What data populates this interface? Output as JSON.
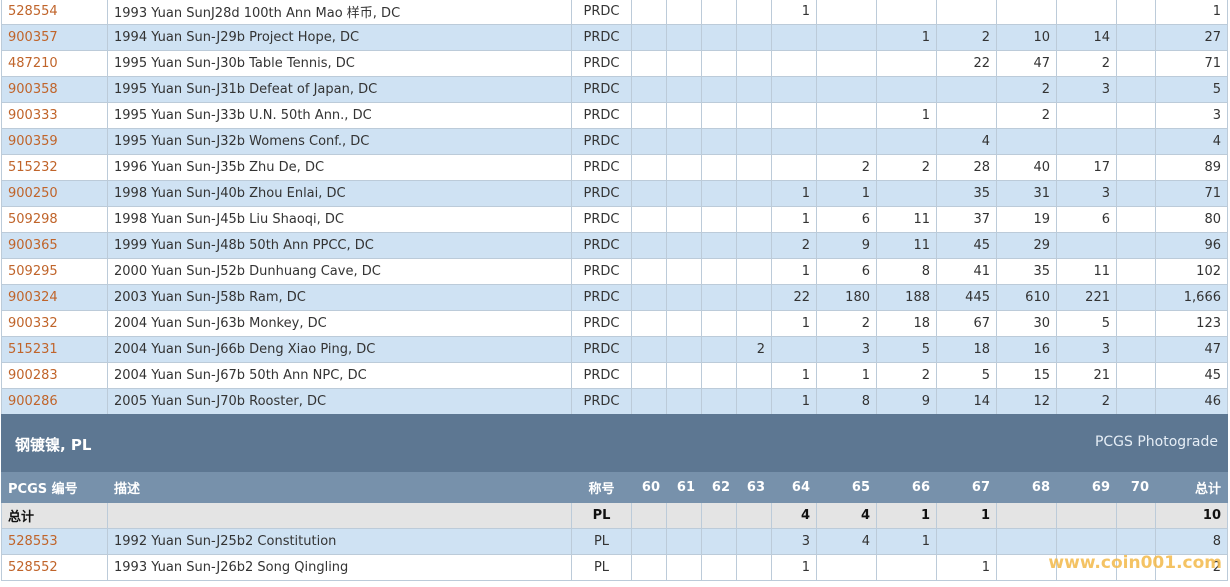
{
  "top_rows": [
    {
      "id": "528554",
      "desc": "1993 Yuan SunJ28d 100th Ann Mao 样币, DC",
      "grade": "PRDC",
      "counts": [
        null,
        null,
        null,
        null,
        1,
        null,
        null,
        null,
        null,
        null,
        null
      ],
      "total": "1"
    },
    {
      "id": "900357",
      "desc": "1994 Yuan Sun-J29b Project Hope, DC",
      "grade": "PRDC",
      "counts": [
        null,
        null,
        null,
        null,
        null,
        null,
        1,
        2,
        10,
        14,
        null
      ],
      "total": "27"
    },
    {
      "id": "487210",
      "desc": "1995 Yuan Sun-J30b Table Tennis, DC",
      "grade": "PRDC",
      "counts": [
        null,
        null,
        null,
        null,
        null,
        null,
        null,
        22,
        47,
        2,
        null
      ],
      "total": "71"
    },
    {
      "id": "900358",
      "desc": "1995 Yuan Sun-J31b Defeat of Japan, DC",
      "grade": "PRDC",
      "counts": [
        null,
        null,
        null,
        null,
        null,
        null,
        null,
        null,
        2,
        3,
        null
      ],
      "total": "5"
    },
    {
      "id": "900333",
      "desc": "1995 Yuan Sun-J33b U.N. 50th Ann., DC",
      "grade": "PRDC",
      "counts": [
        null,
        null,
        null,
        null,
        null,
        null,
        1,
        null,
        2,
        null,
        null
      ],
      "total": "3"
    },
    {
      "id": "900359",
      "desc": "1995 Yuan Sun-J32b Womens Conf., DC",
      "grade": "PRDC",
      "counts": [
        null,
        null,
        null,
        null,
        null,
        null,
        null,
        4,
        null,
        null,
        null
      ],
      "total": "4"
    },
    {
      "id": "515232",
      "desc": "1996 Yuan Sun-J35b Zhu De, DC",
      "grade": "PRDC",
      "counts": [
        null,
        null,
        null,
        null,
        null,
        2,
        2,
        28,
        40,
        17,
        null
      ],
      "total": "89"
    },
    {
      "id": "900250",
      "desc": "1998 Yuan Sun-J40b Zhou Enlai, DC",
      "grade": "PRDC",
      "counts": [
        null,
        null,
        null,
        null,
        1,
        1,
        null,
        35,
        31,
        3,
        null
      ],
      "total": "71"
    },
    {
      "id": "509298",
      "desc": "1998 Yuan Sun-J45b Liu Shaoqi, DC",
      "grade": "PRDC",
      "counts": [
        null,
        null,
        null,
        null,
        1,
        6,
        11,
        37,
        19,
        6,
        null
      ],
      "total": "80"
    },
    {
      "id": "900365",
      "desc": "1999 Yuan Sun-J48b 50th Ann PPCC, DC",
      "grade": "PRDC",
      "counts": [
        null,
        null,
        null,
        null,
        2,
        9,
        11,
        45,
        29,
        null,
        null
      ],
      "total": "96"
    },
    {
      "id": "509295",
      "desc": "2000 Yuan Sun-J52b Dunhuang Cave, DC",
      "grade": "PRDC",
      "counts": [
        null,
        null,
        null,
        null,
        1,
        6,
        8,
        41,
        35,
        11,
        null
      ],
      "total": "102"
    },
    {
      "id": "900324",
      "desc": "2003 Yuan Sun-J58b Ram, DC",
      "grade": "PRDC",
      "counts": [
        null,
        null,
        null,
        null,
        22,
        180,
        188,
        445,
        610,
        221,
        null
      ],
      "total": "1,666"
    },
    {
      "id": "900332",
      "desc": "2004 Yuan Sun-J63b Monkey, DC",
      "grade": "PRDC",
      "counts": [
        null,
        null,
        null,
        null,
        1,
        2,
        18,
        67,
        30,
        5,
        null
      ],
      "total": "123"
    },
    {
      "id": "515231",
      "desc": "2004 Yuan Sun-J66b Deng Xiao Ping, DC",
      "grade": "PRDC",
      "counts": [
        null,
        null,
        null,
        2,
        null,
        3,
        5,
        18,
        16,
        3,
        null
      ],
      "total": "47"
    },
    {
      "id": "900283",
      "desc": "2004 Yuan Sun-J67b 50th Ann NPC, DC",
      "grade": "PRDC",
      "counts": [
        null,
        null,
        null,
        null,
        1,
        1,
        2,
        5,
        15,
        21,
        null
      ],
      "total": "45"
    },
    {
      "id": "900286",
      "desc": "2005 Yuan Sun-J70b Rooster, DC",
      "grade": "PRDC",
      "counts": [
        null,
        null,
        null,
        null,
        1,
        8,
        9,
        14,
        12,
        2,
        null
      ],
      "total": "46"
    }
  ],
  "section": {
    "title": "钢镀镍, PL",
    "link": "PCGS Photograde"
  },
  "columns": [
    "PCGS 编号",
    "描述",
    "称号",
    "60",
    "61",
    "62",
    "63",
    "64",
    "65",
    "66",
    "67",
    "68",
    "69",
    "70",
    "总计"
  ],
  "totals": {
    "label": "总计",
    "grade": "PL",
    "counts": [
      null,
      null,
      null,
      null,
      4,
      4,
      1,
      1,
      null,
      null,
      null
    ],
    "total": "10"
  },
  "bottom_rows": [
    {
      "id": "528553",
      "desc": "1992 Yuan Sun-J25b2 Constitution",
      "grade": "PL",
      "counts": [
        null,
        null,
        null,
        null,
        3,
        4,
        1,
        null,
        null,
        null,
        null
      ],
      "total": "8"
    },
    {
      "id": "528552",
      "desc": "1993 Yuan Sun-J26b2 Song Qingling",
      "grade": "PL",
      "counts": [
        null,
        null,
        null,
        null,
        1,
        null,
        null,
        1,
        null,
        null,
        null
      ],
      "total": "2"
    }
  ],
  "watermark": "www.coin001.com"
}
